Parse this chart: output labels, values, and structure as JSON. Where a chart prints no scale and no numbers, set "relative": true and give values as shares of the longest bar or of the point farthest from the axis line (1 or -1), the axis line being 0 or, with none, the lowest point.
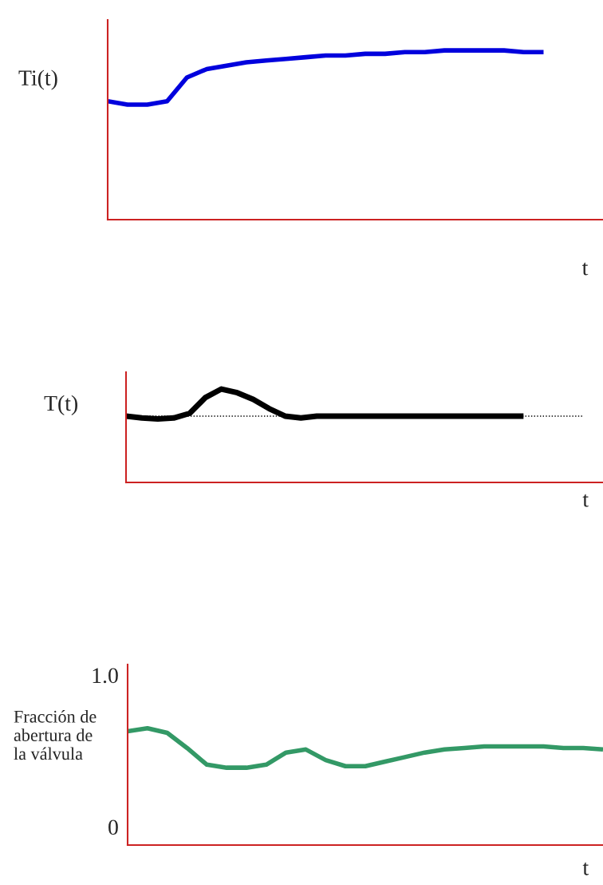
{
  "chart_data": [
    {
      "type": "line",
      "ylabel": "Ti(t)",
      "xlabel": "t",
      "relative": true,
      "tick_labels": false,
      "grid": false,
      "legend": false,
      "categories": [
        null,
        null,
        null,
        null,
        null,
        null,
        null,
        null,
        null,
        null,
        null,
        null,
        null,
        null,
        null,
        null,
        null,
        null,
        null,
        null,
        null,
        null,
        null,
        null,
        null,
        null
      ],
      "series": [
        {
          "color": "#0000dd",
          "values": [
            0.7,
            0.68,
            0.68,
            0.7,
            0.84,
            0.89,
            0.91,
            0.93,
            0.94,
            0.95,
            0.96,
            0.97,
            0.97,
            0.98,
            0.98,
            0.99,
            0.99,
            1.0,
            1.0,
            1.0,
            1.0,
            0.99,
            0.99,
            null,
            null,
            null
          ]
        }
      ]
    },
    {
      "type": "line",
      "ylabel": "T(t)",
      "xlabel": "t",
      "relative": true,
      "tick_labels": false,
      "grid": false,
      "legend": false,
      "categories": [
        null,
        null,
        null,
        null,
        null,
        null,
        null,
        null,
        null,
        null,
        null,
        null,
        null,
        null,
        null,
        null,
        null,
        null,
        null,
        null,
        null,
        null,
        null,
        null,
        null,
        null,
        null,
        null,
        null,
        null,
        null
      ],
      "series": [
        {
          "color": "#000000",
          "values": [
            0.71,
            0.69,
            0.68,
            0.69,
            0.74,
            0.91,
            1.0,
            0.96,
            0.89,
            0.79,
            0.71,
            0.69,
            0.71,
            0.71,
            0.71,
            0.71,
            0.71,
            0.71,
            0.71,
            0.71,
            0.71,
            0.71,
            0.71,
            0.71,
            0.71,
            0.71,
            null,
            null,
            null,
            null,
            null
          ]
        }
      ],
      "ref_lines": [
        {
          "axis": "y",
          "value": 0.71,
          "color": "#000000",
          "line_style": "dotted"
        }
      ]
    },
    {
      "type": "line",
      "ylabel": "Fracción de\nabertura de\nla válvula",
      "xlabel": "t",
      "tick_labels": "y",
      "grid": false,
      "legend": false,
      "ylim": [
        -0.12,
        1.07
      ],
      "yticks": [
        0,
        {
          "value": 1.0,
          "label": "1.0"
        }
      ],
      "categories": [
        null,
        null,
        null,
        null,
        null,
        null,
        null,
        null,
        null,
        null,
        null,
        null,
        null,
        null,
        null,
        null,
        null,
        null,
        null,
        null,
        null,
        null,
        null,
        null,
        null
      ],
      "series": [
        {
          "color": "#339966",
          "values": [
            0.63,
            0.65,
            0.62,
            0.52,
            0.41,
            0.39,
            0.39,
            0.41,
            0.49,
            0.51,
            0.44,
            0.4,
            0.4,
            0.43,
            0.46,
            0.49,
            0.51,
            0.52,
            0.53,
            0.53,
            0.53,
            0.53,
            0.52,
            0.52,
            0.51
          ]
        }
      ]
    }
  ]
}
